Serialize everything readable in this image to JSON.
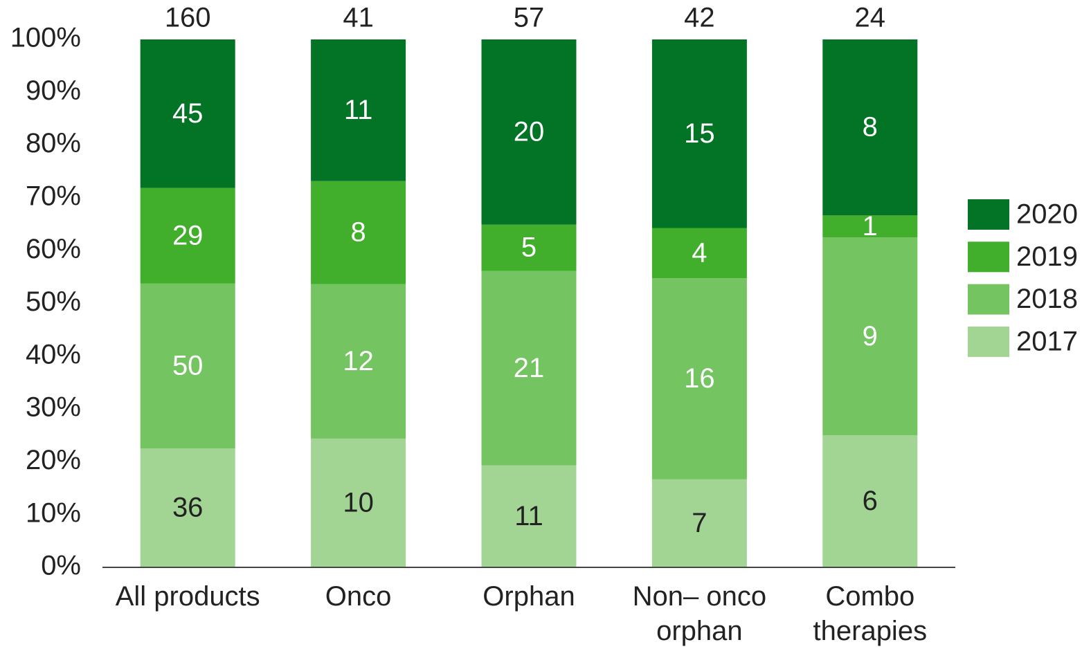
{
  "chart_data": {
    "type": "bar",
    "stacked": "percent",
    "categories": [
      "All products",
      "Onco",
      "Orphan",
      "Non– onco\norphan",
      "Combo\ntherapies"
    ],
    "totals": [
      160,
      41,
      57,
      42,
      24
    ],
    "series": [
      {
        "name": "2017",
        "color": "#a2d594",
        "values": [
          36,
          10,
          11,
          7,
          6
        ]
      },
      {
        "name": "2018",
        "color": "#74c461",
        "values": [
          50,
          12,
          21,
          16,
          9
        ]
      },
      {
        "name": "2019",
        "color": "#41ae2c",
        "values": [
          29,
          8,
          5,
          4,
          1
        ]
      },
      {
        "name": "2020",
        "color": "#037325",
        "values": [
          45,
          11,
          20,
          15,
          8
        ]
      }
    ],
    "ylim": [
      0,
      100
    ],
    "yticks": [
      {
        "value": 0,
        "label": "0%"
      },
      {
        "value": 10,
        "label": "10%"
      },
      {
        "value": 20,
        "label": "20%"
      },
      {
        "value": 30,
        "label": "30%"
      },
      {
        "value": 40,
        "label": "40%"
      },
      {
        "value": 50,
        "label": "50%"
      },
      {
        "value": 60,
        "label": "60%"
      },
      {
        "value": 70,
        "label": "70%"
      },
      {
        "value": 80,
        "label": "80%"
      },
      {
        "value": 90,
        "label": "90%"
      },
      {
        "value": 100,
        "label": "100%"
      }
    ],
    "grid": false,
    "legend": "right"
  }
}
